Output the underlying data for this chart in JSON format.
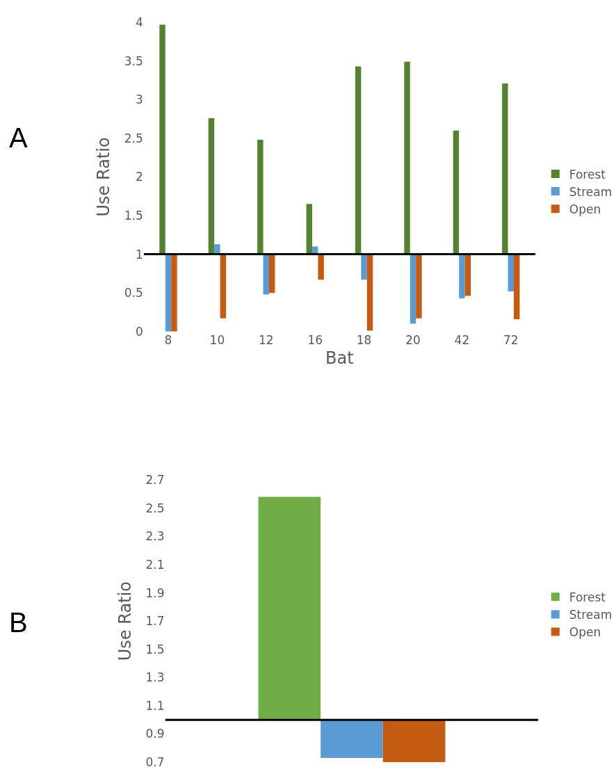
{
  "chart_data": [
    {
      "type": "bar",
      "xlabel": "Bat",
      "ylabel": "Use Ratio",
      "annotations": [
        "A"
      ],
      "categories": [
        "8",
        "10",
        "12",
        "16",
        "18",
        "20",
        "42",
        "72"
      ],
      "series": [
        {
          "name": "Forest",
          "color": "#548235",
          "base": [
            1,
            1,
            1,
            1,
            1,
            1,
            1,
            1
          ],
          "values": [
            2.97,
            1.76,
            1.48,
            0.65,
            2.43,
            2.49,
            1.6,
            2.21
          ]
        },
        {
          "name": "Stream",
          "color": "#5b9bd5",
          "base": [
            1,
            1,
            1,
            1,
            1,
            1,
            1,
            1
          ],
          "values": [
            -1,
            0.13,
            -0.52,
            0.1,
            -0.33,
            -0.9,
            -0.57,
            -0.48
          ]
        },
        {
          "name": "Open",
          "color": "#c55a11",
          "base": [
            1,
            1,
            1,
            1,
            1,
            1,
            1,
            1
          ],
          "values": [
            -1,
            -0.83,
            -0.5,
            -0.33,
            -0.99,
            -0.83,
            -0.54,
            -0.84
          ]
        }
      ],
      "ylim": [
        0,
        4
      ],
      "yticks": [
        0,
        0.5,
        1,
        1.5,
        2,
        2.5,
        3,
        3.5,
        4
      ],
      "ref_lines": [
        {
          "axis": "y",
          "value": 1,
          "color": "#000000"
        }
      ],
      "legend": "right"
    },
    {
      "type": "bar",
      "ylabel": "Use Ratio",
      "annotations": [
        "B"
      ],
      "categories": [
        null
      ],
      "series": [
        {
          "name": "Forest",
          "color": "#70ad47",
          "base": [
            1
          ],
          "values": [
            1.58
          ]
        },
        {
          "name": "Stream",
          "color": "#5b9bd5",
          "base": [
            1
          ],
          "values": [
            -0.27
          ]
        },
        {
          "name": "Open",
          "color": "#c55a11",
          "base": [
            1
          ],
          "values": [
            -0.3
          ]
        }
      ],
      "ylim": [
        0.7,
        2.7
      ],
      "yticks": [
        0.7,
        0.9,
        1.1,
        1.3,
        1.5,
        1.7,
        1.9,
        2.1,
        2.3,
        2.5,
        2.7
      ],
      "ref_lines": [
        {
          "axis": "y",
          "value": 1,
          "color": "#000000"
        }
      ],
      "legend": "right"
    }
  ]
}
